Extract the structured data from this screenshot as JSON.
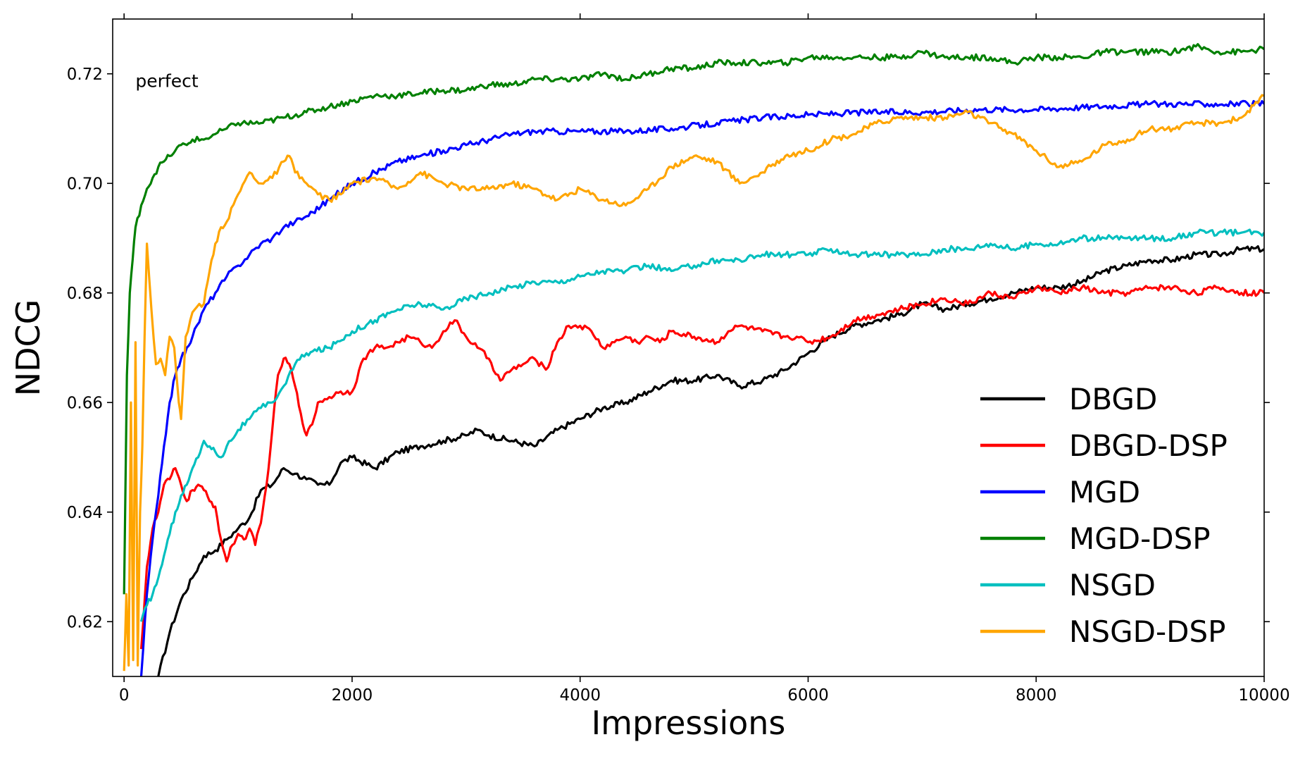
{
  "chart_data": {
    "type": "line",
    "title": "",
    "xlabel": "Impressions",
    "ylabel": "NDCG",
    "xlim": [
      -100,
      10000
    ],
    "ylim": [
      0.61,
      0.73
    ],
    "x_ticks": [
      0,
      2000,
      4000,
      6000,
      8000,
      10000
    ],
    "x_tick_labels": [
      "0",
      "2000",
      "4000",
      "6000",
      "8000",
      "10000"
    ],
    "y_ticks": [
      0.62,
      0.64,
      0.66,
      0.68,
      0.7,
      0.72
    ],
    "y_tick_labels": [
      "0.62",
      "0.64",
      "0.66",
      "0.68",
      "0.70",
      "0.72"
    ],
    "grid": false,
    "legend_position": "lower-right",
    "annotations": [
      {
        "text": "perfect",
        "x": 100,
        "y": 0.719
      }
    ],
    "series": [
      {
        "name": "DBGD",
        "color": "#000000",
        "x": [
          300,
          400,
          500,
          600,
          700,
          800,
          900,
          1000,
          1100,
          1200,
          1300,
          1400,
          1500,
          1600,
          1700,
          1800,
          1900,
          2000,
          2200,
          2400,
          2600,
          2800,
          3000,
          3100,
          3200,
          3400,
          3600,
          3800,
          4000,
          4200,
          4400,
          4600,
          4800,
          5000,
          5200,
          5400,
          5600,
          5800,
          6000,
          6200,
          6400,
          6600,
          6800,
          7000,
          7200,
          7400,
          7600,
          7800,
          8000,
          8200,
          8400,
          8600,
          8800,
          9000,
          9200,
          9400,
          9600,
          9800,
          10000
        ],
        "values": [
          0.61,
          0.618,
          0.624,
          0.628,
          0.632,
          0.633,
          0.635,
          0.637,
          0.639,
          0.644,
          0.645,
          0.648,
          0.647,
          0.646,
          0.645,
          0.645,
          0.649,
          0.65,
          0.648,
          0.651,
          0.652,
          0.653,
          0.654,
          0.655,
          0.654,
          0.653,
          0.652,
          0.655,
          0.657,
          0.659,
          0.66,
          0.662,
          0.664,
          0.664,
          0.665,
          0.663,
          0.664,
          0.666,
          0.669,
          0.672,
          0.674,
          0.675,
          0.676,
          0.678,
          0.677,
          0.678,
          0.679,
          0.68,
          0.681,
          0.681,
          0.682,
          0.684,
          0.685,
          0.686,
          0.686,
          0.687,
          0.687,
          0.688,
          0.688
        ]
      },
      {
        "name": "DBGD-DSP",
        "color": "#ff0000",
        "x": [
          150,
          200,
          250,
          300,
          350,
          400,
          450,
          500,
          550,
          600,
          650,
          700,
          750,
          800,
          850,
          900,
          950,
          1000,
          1050,
          1100,
          1150,
          1200,
          1250,
          1300,
          1350,
          1400,
          1450,
          1500,
          1550,
          1600,
          1650,
          1700,
          1800,
          1900,
          2000,
          2100,
          2200,
          2300,
          2400,
          2500,
          2600,
          2700,
          2800,
          2900,
          3000,
          3100,
          3200,
          3300,
          3400,
          3500,
          3600,
          3700,
          3800,
          3900,
          4000,
          4100,
          4200,
          4300,
          4400,
          4500,
          4600,
          4700,
          4800,
          5000,
          5200,
          5300,
          5400,
          5600,
          5800,
          5900,
          6000,
          6200,
          6400,
          6600,
          6800,
          7000,
          7200,
          7400,
          7600,
          7800,
          8000,
          8200,
          8400,
          8600,
          8800,
          9000,
          9200,
          9400,
          9600,
          9800,
          10000
        ],
        "values": [
          0.615,
          0.63,
          0.637,
          0.64,
          0.645,
          0.646,
          0.648,
          0.645,
          0.642,
          0.644,
          0.645,
          0.644,
          0.642,
          0.641,
          0.635,
          0.631,
          0.634,
          0.636,
          0.635,
          0.637,
          0.634,
          0.638,
          0.645,
          0.655,
          0.665,
          0.668,
          0.667,
          0.663,
          0.658,
          0.654,
          0.656,
          0.66,
          0.661,
          0.662,
          0.662,
          0.668,
          0.67,
          0.67,
          0.671,
          0.672,
          0.671,
          0.67,
          0.673,
          0.675,
          0.672,
          0.67,
          0.668,
          0.664,
          0.666,
          0.667,
          0.668,
          0.666,
          0.671,
          0.674,
          0.674,
          0.673,
          0.67,
          0.671,
          0.672,
          0.671,
          0.672,
          0.671,
          0.673,
          0.672,
          0.671,
          0.673,
          0.674,
          0.673,
          0.672,
          0.672,
          0.671,
          0.672,
          0.675,
          0.676,
          0.677,
          0.678,
          0.679,
          0.678,
          0.68,
          0.679,
          0.681,
          0.68,
          0.681,
          0.68,
          0.68,
          0.681,
          0.681,
          0.68,
          0.681,
          0.68,
          0.68
        ]
      },
      {
        "name": "MGD",
        "color": "#0000ff",
        "x": [
          150,
          200,
          250,
          300,
          350,
          400,
          450,
          500,
          550,
          600,
          700,
          800,
          900,
          1000,
          1100,
          1200,
          1300,
          1400,
          1500,
          1600,
          1800,
          2000,
          2200,
          2400,
          2600,
          2800,
          3000,
          3200,
          3400,
          3600,
          3800,
          4000,
          4400,
          4800,
          5200,
          5600,
          6000,
          6500,
          7000,
          7500,
          8000,
          8500,
          9000,
          9500,
          10000
        ],
        "values": [
          0.61,
          0.625,
          0.635,
          0.643,
          0.652,
          0.66,
          0.665,
          0.668,
          0.67,
          0.672,
          0.677,
          0.68,
          0.683,
          0.685,
          0.687,
          0.689,
          0.69,
          0.692,
          0.693,
          0.694,
          0.697,
          0.7,
          0.702,
          0.704,
          0.705,
          0.706,
          0.707,
          0.708,
          0.709,
          0.7095,
          0.7095,
          0.7095,
          0.7095,
          0.71,
          0.711,
          0.712,
          0.7125,
          0.713,
          0.713,
          0.7135,
          0.7135,
          0.714,
          0.7145,
          0.7145,
          0.7145
        ]
      },
      {
        "name": "MGD-DSP",
        "color": "#008000",
        "x": [
          0,
          25,
          50,
          75,
          100,
          150,
          200,
          250,
          300,
          350,
          400,
          450,
          500,
          550,
          600,
          700,
          800,
          900,
          1000,
          1200,
          1400,
          1600,
          1800,
          2000,
          2200,
          2400,
          2600,
          2800,
          3000,
          3200,
          3400,
          3600,
          3800,
          4000,
          4200,
          4400,
          4600,
          4800,
          5000,
          5200,
          5400,
          5600,
          5800,
          6000,
          6200,
          6400,
          6600,
          6800,
          7000,
          7200,
          7400,
          7600,
          7800,
          8000,
          8200,
          8400,
          8600,
          8800,
          9000,
          9200,
          9400,
          9600,
          9800,
          10000
        ],
        "values": [
          0.625,
          0.665,
          0.68,
          0.686,
          0.692,
          0.696,
          0.699,
          0.701,
          0.703,
          0.704,
          0.705,
          0.706,
          0.707,
          0.707,
          0.708,
          0.708,
          0.709,
          0.71,
          0.711,
          0.711,
          0.712,
          0.713,
          0.714,
          0.715,
          0.716,
          0.716,
          0.7165,
          0.717,
          0.717,
          0.718,
          0.718,
          0.719,
          0.719,
          0.719,
          0.72,
          0.719,
          0.72,
          0.721,
          0.721,
          0.722,
          0.722,
          0.722,
          0.722,
          0.723,
          0.723,
          0.723,
          0.723,
          0.723,
          0.724,
          0.723,
          0.723,
          0.723,
          0.722,
          0.723,
          0.723,
          0.723,
          0.724,
          0.724,
          0.724,
          0.724,
          0.725,
          0.724,
          0.724,
          0.7245
        ]
      },
      {
        "name": "NSGD",
        "color": "#00bfbf",
        "x": [
          150,
          200,
          250,
          300,
          350,
          400,
          450,
          500,
          550,
          600,
          650,
          700,
          750,
          800,
          850,
          900,
          1000,
          1100,
          1200,
          1300,
          1400,
          1500,
          1600,
          1800,
          2000,
          2200,
          2400,
          2600,
          2800,
          3000,
          3200,
          3400,
          3600,
          3800,
          4000,
          4200,
          4400,
          4600,
          4800,
          5000,
          5200,
          5400,
          5600,
          5800,
          6000,
          6200,
          6400,
          6600,
          6800,
          7000,
          7200,
          7400,
          7600,
          7800,
          8000,
          8200,
          8400,
          8600,
          8800,
          9000,
          9200,
          9400,
          9600,
          9800,
          10000
        ],
        "values": [
          0.62,
          0.623,
          0.625,
          0.628,
          0.632,
          0.636,
          0.64,
          0.643,
          0.645,
          0.648,
          0.65,
          0.653,
          0.652,
          0.651,
          0.65,
          0.652,
          0.655,
          0.657,
          0.659,
          0.66,
          0.663,
          0.667,
          0.669,
          0.67,
          0.673,
          0.675,
          0.677,
          0.678,
          0.677,
          0.679,
          0.68,
          0.681,
          0.682,
          0.682,
          0.683,
          0.684,
          0.684,
          0.685,
          0.684,
          0.685,
          0.686,
          0.686,
          0.687,
          0.687,
          0.687,
          0.688,
          0.687,
          0.687,
          0.687,
          0.687,
          0.688,
          0.688,
          0.689,
          0.688,
          0.689,
          0.689,
          0.69,
          0.69,
          0.69,
          0.69,
          0.69,
          0.691,
          0.691,
          0.691,
          0.691
        ]
      },
      {
        "name": "NSGD-DSP",
        "color": "#ffa500",
        "x": [
          0,
          20,
          40,
          60,
          80,
          100,
          120,
          140,
          160,
          180,
          200,
          240,
          280,
          320,
          360,
          400,
          440,
          480,
          500,
          540,
          580,
          620,
          660,
          700,
          750,
          800,
          850,
          900,
          1000,
          1100,
          1200,
          1300,
          1400,
          1450,
          1500,
          1600,
          1700,
          1800,
          1900,
          2000,
          2200,
          2400,
          2600,
          2800,
          3000,
          3200,
          3400,
          3600,
          3800,
          4000,
          4200,
          4400,
          4600,
          4800,
          5000,
          5200,
          5400,
          5600,
          5800,
          6000,
          6200,
          6400,
          6600,
          6800,
          7000,
          7200,
          7400,
          7600,
          7800,
          8000,
          8200,
          8400,
          8600,
          8800,
          9000,
          9200,
          9400,
          9600,
          9800,
          10000
        ],
        "values": [
          0.611,
          0.625,
          0.612,
          0.66,
          0.613,
          0.671,
          0.612,
          0.64,
          0.652,
          0.672,
          0.689,
          0.677,
          0.667,
          0.668,
          0.665,
          0.672,
          0.67,
          0.66,
          0.657,
          0.672,
          0.675,
          0.677,
          0.678,
          0.678,
          0.684,
          0.689,
          0.692,
          0.693,
          0.698,
          0.702,
          0.7,
          0.701,
          0.704,
          0.705,
          0.702,
          0.7,
          0.698,
          0.697,
          0.698,
          0.7,
          0.701,
          0.699,
          0.702,
          0.7,
          0.699,
          0.699,
          0.7,
          0.699,
          0.697,
          0.699,
          0.697,
          0.696,
          0.699,
          0.703,
          0.705,
          0.704,
          0.7,
          0.702,
          0.705,
          0.706,
          0.708,
          0.709,
          0.711,
          0.712,
          0.712,
          0.712,
          0.713,
          0.711,
          0.709,
          0.706,
          0.703,
          0.704,
          0.707,
          0.708,
          0.71,
          0.71,
          0.711,
          0.711,
          0.712,
          0.716
        ]
      }
    ]
  }
}
